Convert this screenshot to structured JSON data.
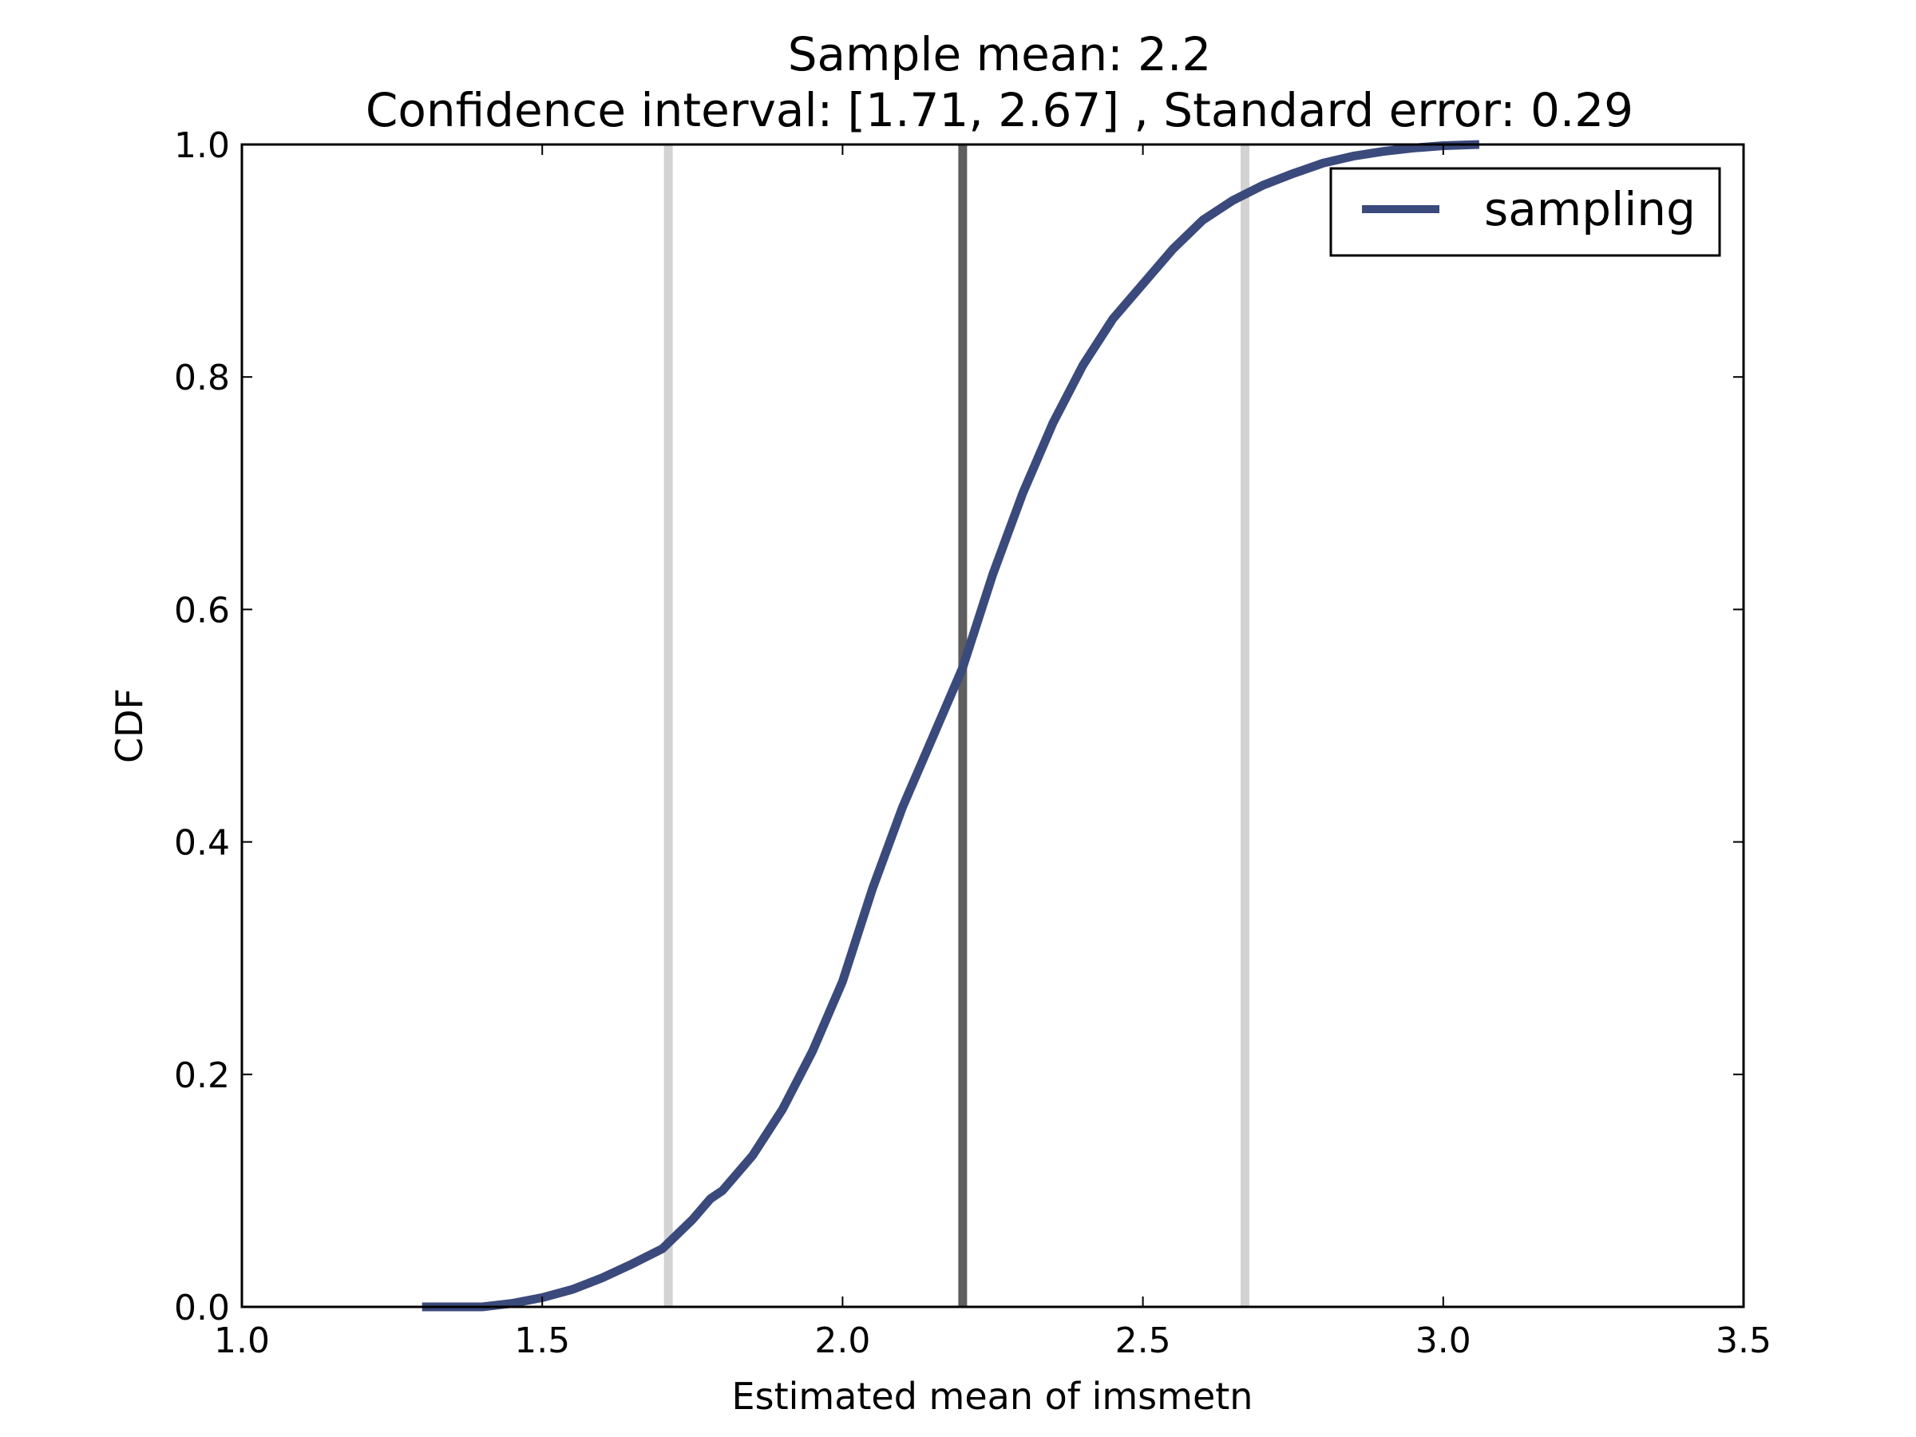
{
  "chart_data": {
    "type": "line",
    "title_line1": "Sample mean: 2.2",
    "title_line2": "Confidence interval: [1.71, 2.67] , Standard error: 0.29",
    "xlabel": "Estimated mean of imsmetn",
    "ylabel": "CDF",
    "xlim": [
      1.0,
      3.5
    ],
    "ylim": [
      0.0,
      1.0
    ],
    "x_ticks": [
      1.0,
      1.5,
      2.0,
      2.5,
      3.0,
      3.5
    ],
    "x_tick_labels": [
      "1.0",
      "1.5",
      "2.0",
      "2.5",
      "3.0",
      "3.5"
    ],
    "y_ticks": [
      0.0,
      0.2,
      0.4,
      0.6,
      0.8,
      1.0
    ],
    "y_tick_labels": [
      "0.0",
      "0.2",
      "0.4",
      "0.6",
      "0.8",
      "1.0"
    ],
    "grid": false,
    "legend": {
      "position": "top-right",
      "entries": [
        "sampling"
      ]
    },
    "series": [
      {
        "name": "sampling",
        "color": "#3b4a7c",
        "x": [
          1.3,
          1.35,
          1.4,
          1.45,
          1.5,
          1.55,
          1.6,
          1.65,
          1.7,
          1.75,
          1.78,
          1.8,
          1.85,
          1.9,
          1.95,
          2.0,
          2.05,
          2.1,
          2.15,
          2.2,
          2.25,
          2.3,
          2.35,
          2.4,
          2.45,
          2.5,
          2.55,
          2.6,
          2.65,
          2.7,
          2.75,
          2.8,
          2.85,
          2.9,
          2.95,
          3.0,
          3.06
        ],
        "y": [
          0.0,
          0.0,
          0.0,
          0.003,
          0.008,
          0.015,
          0.025,
          0.037,
          0.05,
          0.075,
          0.093,
          0.1,
          0.13,
          0.17,
          0.22,
          0.28,
          0.36,
          0.43,
          0.49,
          0.55,
          0.63,
          0.7,
          0.76,
          0.81,
          0.85,
          0.88,
          0.91,
          0.935,
          0.952,
          0.965,
          0.975,
          0.984,
          0.99,
          0.994,
          0.997,
          0.999,
          1.0
        ]
      }
    ],
    "vlines": [
      {
        "x": 1.71,
        "color": "#d3d3d3"
      },
      {
        "x": 2.2,
        "color": "#5e5e5e"
      },
      {
        "x": 2.67,
        "color": "#d3d3d3"
      }
    ]
  }
}
